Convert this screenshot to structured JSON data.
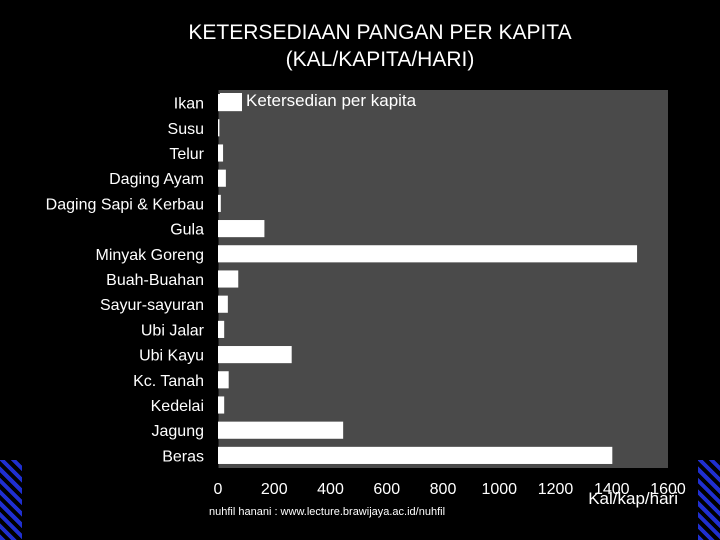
{
  "title_line1": "KETERSEDIAAN PANGAN PER KAPITA",
  "title_line2": "(KAL/KAPITA/HARI)",
  "footer": "nuhfil hanani : www.lecture.brawijaya.ac.id/nuhfil",
  "colors": {
    "background": "#000000",
    "plot_area": "#4a4a4a",
    "bar": "#ffffff",
    "stripe": "#1f2fd0"
  },
  "chart_data": {
    "type": "bar",
    "orientation": "horizontal",
    "categories": [
      "Ikan",
      "Susu",
      "Telur",
      "Daging Ayam",
      "Daging Sapi & Kerbau",
      "Gula",
      "Minyak Goreng",
      "Buah-Buahan",
      "Sayur-sayuran",
      "Ubi Jalar",
      "Ubi Kayu",
      "Kc. Tanah",
      "Kedelai",
      "Jagung",
      "Beras"
    ],
    "series": [
      {
        "name": "Ketersedian per kapita",
        "values": [
          85,
          5,
          18,
          28,
          10,
          165,
          1490,
          72,
          35,
          22,
          262,
          38,
          22,
          445,
          1402
        ]
      }
    ],
    "xlim": [
      0,
      1600
    ],
    "xticks": [
      "0",
      "200",
      "400",
      "600",
      "800",
      "1000",
      "1200",
      "1400",
      "1600"
    ],
    "xlabel": "Kal/kap/hari",
    "legend": "top-left",
    "grid": false
  }
}
